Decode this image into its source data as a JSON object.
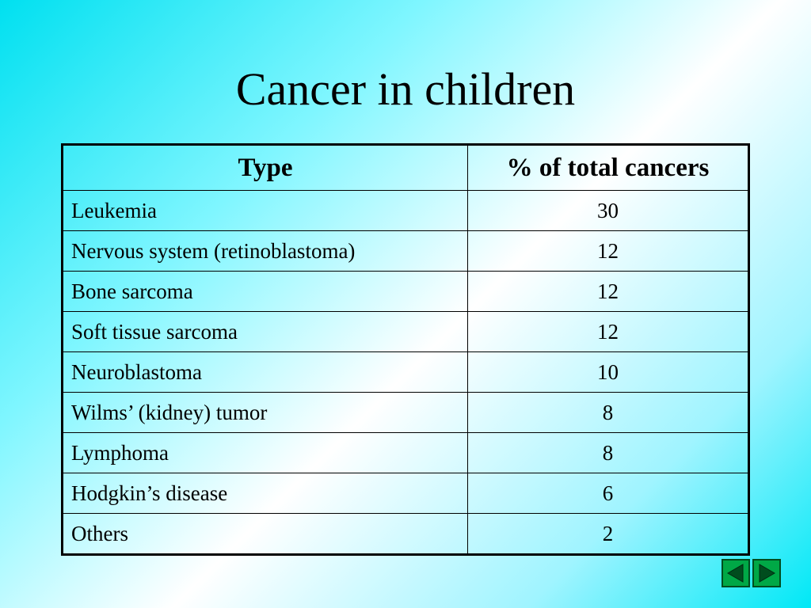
{
  "title": "Cancer in children",
  "table": {
    "headers": [
      "Type",
      "% of total cancers"
    ],
    "rows": [
      {
        "type": "Leukemia",
        "value": "30"
      },
      {
        "type": "Nervous system (retinoblastoma)",
        "value": "12"
      },
      {
        "type": "Bone sarcoma",
        "value": "12"
      },
      {
        "type": "Soft tissue sarcoma",
        "value": "12"
      },
      {
        "type": "Neuroblastoma",
        "value": "10"
      },
      {
        "type": "Wilms’ (kidney) tumor",
        "value": "8"
      },
      {
        "type": "Lymphoma",
        "value": "8"
      },
      {
        "type": "Hodgkin’s disease",
        "value": "6"
      },
      {
        "type": "Others",
        "value": "2"
      }
    ]
  },
  "nav": {
    "prev_icon": "triangle-left-icon",
    "next_icon": "triangle-right-icon",
    "button_color": "#00a846"
  }
}
